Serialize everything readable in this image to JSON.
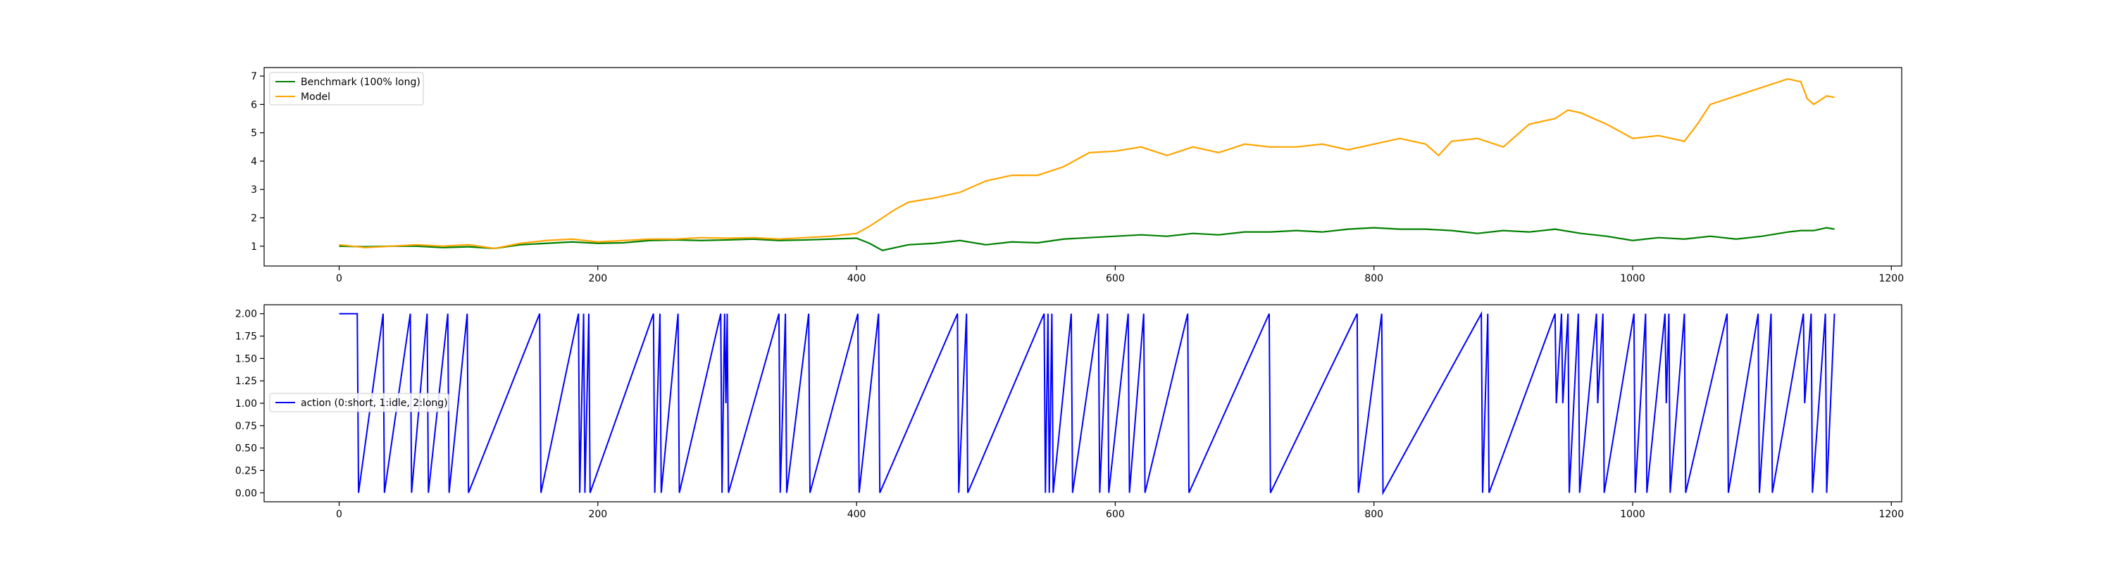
{
  "chart_data": [
    {
      "type": "line",
      "title": "",
      "xlabel": "",
      "ylabel": "",
      "xlim": [
        -58,
        1208
      ],
      "ylim": [
        0.3,
        7.3
      ],
      "xticks": [
        0,
        200,
        400,
        600,
        800,
        1000,
        1200
      ],
      "yticks": [
        1,
        2,
        3,
        4,
        5,
        6,
        7
      ],
      "grid": false,
      "legend": "upper left",
      "series": [
        {
          "name": "Benchmark (100% long)",
          "color": "#008000",
          "x": [
            0,
            20,
            40,
            60,
            80,
            100,
            120,
            140,
            160,
            180,
            200,
            220,
            240,
            260,
            280,
            300,
            320,
            340,
            360,
            380,
            400,
            410,
            420,
            430,
            440,
            460,
            480,
            500,
            520,
            540,
            560,
            580,
            600,
            620,
            640,
            660,
            680,
            700,
            720,
            740,
            760,
            780,
            800,
            820,
            840,
            860,
            880,
            900,
            920,
            940,
            960,
            980,
            1000,
            1020,
            1040,
            1060,
            1080,
            1100,
            1120,
            1130,
            1140,
            1150,
            1156
          ],
          "y": [
            1.0,
            0.98,
            1.0,
            1.0,
            0.95,
            0.98,
            0.92,
            1.05,
            1.1,
            1.15,
            1.1,
            1.12,
            1.2,
            1.22,
            1.2,
            1.22,
            1.25,
            1.2,
            1.22,
            1.25,
            1.28,
            1.1,
            0.85,
            0.95,
            1.05,
            1.1,
            1.2,
            1.05,
            1.15,
            1.12,
            1.25,
            1.3,
            1.35,
            1.4,
            1.35,
            1.45,
            1.4,
            1.5,
            1.5,
            1.55,
            1.5,
            1.6,
            1.65,
            1.6,
            1.6,
            1.55,
            1.45,
            1.55,
            1.5,
            1.6,
            1.45,
            1.35,
            1.2,
            1.3,
            1.25,
            1.35,
            1.25,
            1.35,
            1.5,
            1.55,
            1.55,
            1.65,
            1.6
          ]
        },
        {
          "name": "Model",
          "color": "#ffa500",
          "x": [
            0,
            20,
            40,
            60,
            80,
            100,
            120,
            140,
            160,
            180,
            200,
            220,
            240,
            260,
            280,
            300,
            320,
            340,
            360,
            380,
            400,
            410,
            420,
            430,
            440,
            460,
            480,
            500,
            520,
            540,
            560,
            580,
            600,
            620,
            640,
            660,
            680,
            700,
            720,
            740,
            760,
            780,
            800,
            820,
            840,
            850,
            860,
            880,
            900,
            920,
            940,
            950,
            960,
            980,
            1000,
            1020,
            1040,
            1050,
            1060,
            1080,
            1100,
            1120,
            1130,
            1135,
            1140,
            1150,
            1156
          ],
          "y": [
            1.05,
            0.95,
            1.0,
            1.05,
            1.0,
            1.05,
            0.92,
            1.1,
            1.2,
            1.25,
            1.15,
            1.2,
            1.25,
            1.25,
            1.3,
            1.28,
            1.3,
            1.25,
            1.3,
            1.35,
            1.45,
            1.7,
            2.0,
            2.3,
            2.55,
            2.7,
            2.9,
            3.3,
            3.5,
            3.5,
            3.8,
            4.3,
            4.35,
            4.5,
            4.2,
            4.5,
            4.3,
            4.6,
            4.5,
            4.5,
            4.6,
            4.4,
            4.6,
            4.8,
            4.6,
            4.2,
            4.7,
            4.8,
            4.5,
            5.3,
            5.5,
            5.8,
            5.7,
            5.3,
            4.8,
            4.9,
            4.7,
            5.3,
            6.0,
            6.3,
            6.6,
            6.9,
            6.8,
            6.2,
            6.0,
            6.3,
            6.25
          ]
        }
      ]
    },
    {
      "type": "line",
      "title": "",
      "xlabel": "",
      "ylabel": "",
      "xlim": [
        -58,
        1208
      ],
      "ylim": [
        -0.1,
        2.1
      ],
      "xticks": [
        0,
        200,
        400,
        600,
        800,
        1000,
        1200
      ],
      "yticks": [
        0.0,
        0.25,
        0.5,
        0.75,
        1.0,
        1.25,
        1.5,
        1.75,
        2.0
      ],
      "yticklabels": [
        "0.00",
        "0.25",
        "0.50",
        "0.75",
        "1.00",
        "1.25",
        "1.50",
        "1.75",
        "2.00"
      ],
      "grid": false,
      "legend": "center left",
      "series": [
        {
          "name": "action (0:short, 1:idle, 2:long)",
          "color": "#0000ff",
          "step": true,
          "x": [
            0,
            14,
            15,
            34,
            35,
            55,
            56,
            68,
            69,
            84,
            85,
            99,
            100,
            155,
            156,
            185,
            186,
            189,
            190,
            193,
            194,
            243,
            244,
            248,
            249,
            262,
            263,
            295,
            296,
            298,
            299,
            300,
            301,
            340,
            341,
            345,
            346,
            363,
            364,
            401,
            402,
            417,
            418,
            478,
            479,
            485,
            486,
            545,
            546,
            548,
            549,
            551,
            552,
            566,
            567,
            587,
            588,
            594,
            595,
            610,
            611,
            622,
            623,
            656,
            657,
            719,
            720,
            787,
            788,
            806,
            807,
            883,
            884,
            888,
            889,
            940,
            941,
            945,
            946,
            950,
            951,
            958,
            959,
            972,
            973,
            977,
            978,
            1001,
            1002,
            1010,
            1011,
            1025,
            1026,
            1028,
            1029,
            1040,
            1041,
            1073,
            1074,
            1097,
            1098,
            1107,
            1108,
            1132,
            1133,
            1138,
            1139,
            1149,
            1150,
            1156
          ],
          "y": [
            2,
            2,
            0,
            2,
            0,
            2,
            0,
            2,
            0,
            2,
            0,
            2,
            0,
            2,
            0,
            2,
            0,
            2,
            0,
            2,
            0,
            2,
            0,
            2,
            0,
            2,
            0,
            2,
            0,
            2,
            1,
            2,
            0,
            2,
            0,
            2,
            0,
            2,
            0,
            2,
            0,
            2,
            0,
            2,
            0,
            2,
            0,
            2,
            0,
            2,
            0,
            2,
            0,
            2,
            0,
            2,
            0,
            2,
            0,
            2,
            0,
            2,
            0,
            2,
            0,
            2,
            0,
            2,
            0,
            2,
            0,
            2,
            0,
            2,
            0,
            2,
            1,
            2,
            1,
            2,
            0,
            2,
            0,
            2,
            1,
            2,
            0,
            2,
            0,
            2,
            0,
            2,
            1,
            2,
            0,
            2,
            0,
            2,
            0,
            2,
            0,
            2,
            0,
            2,
            1,
            2,
            0,
            2,
            0,
            2
          ]
        }
      ]
    }
  ]
}
